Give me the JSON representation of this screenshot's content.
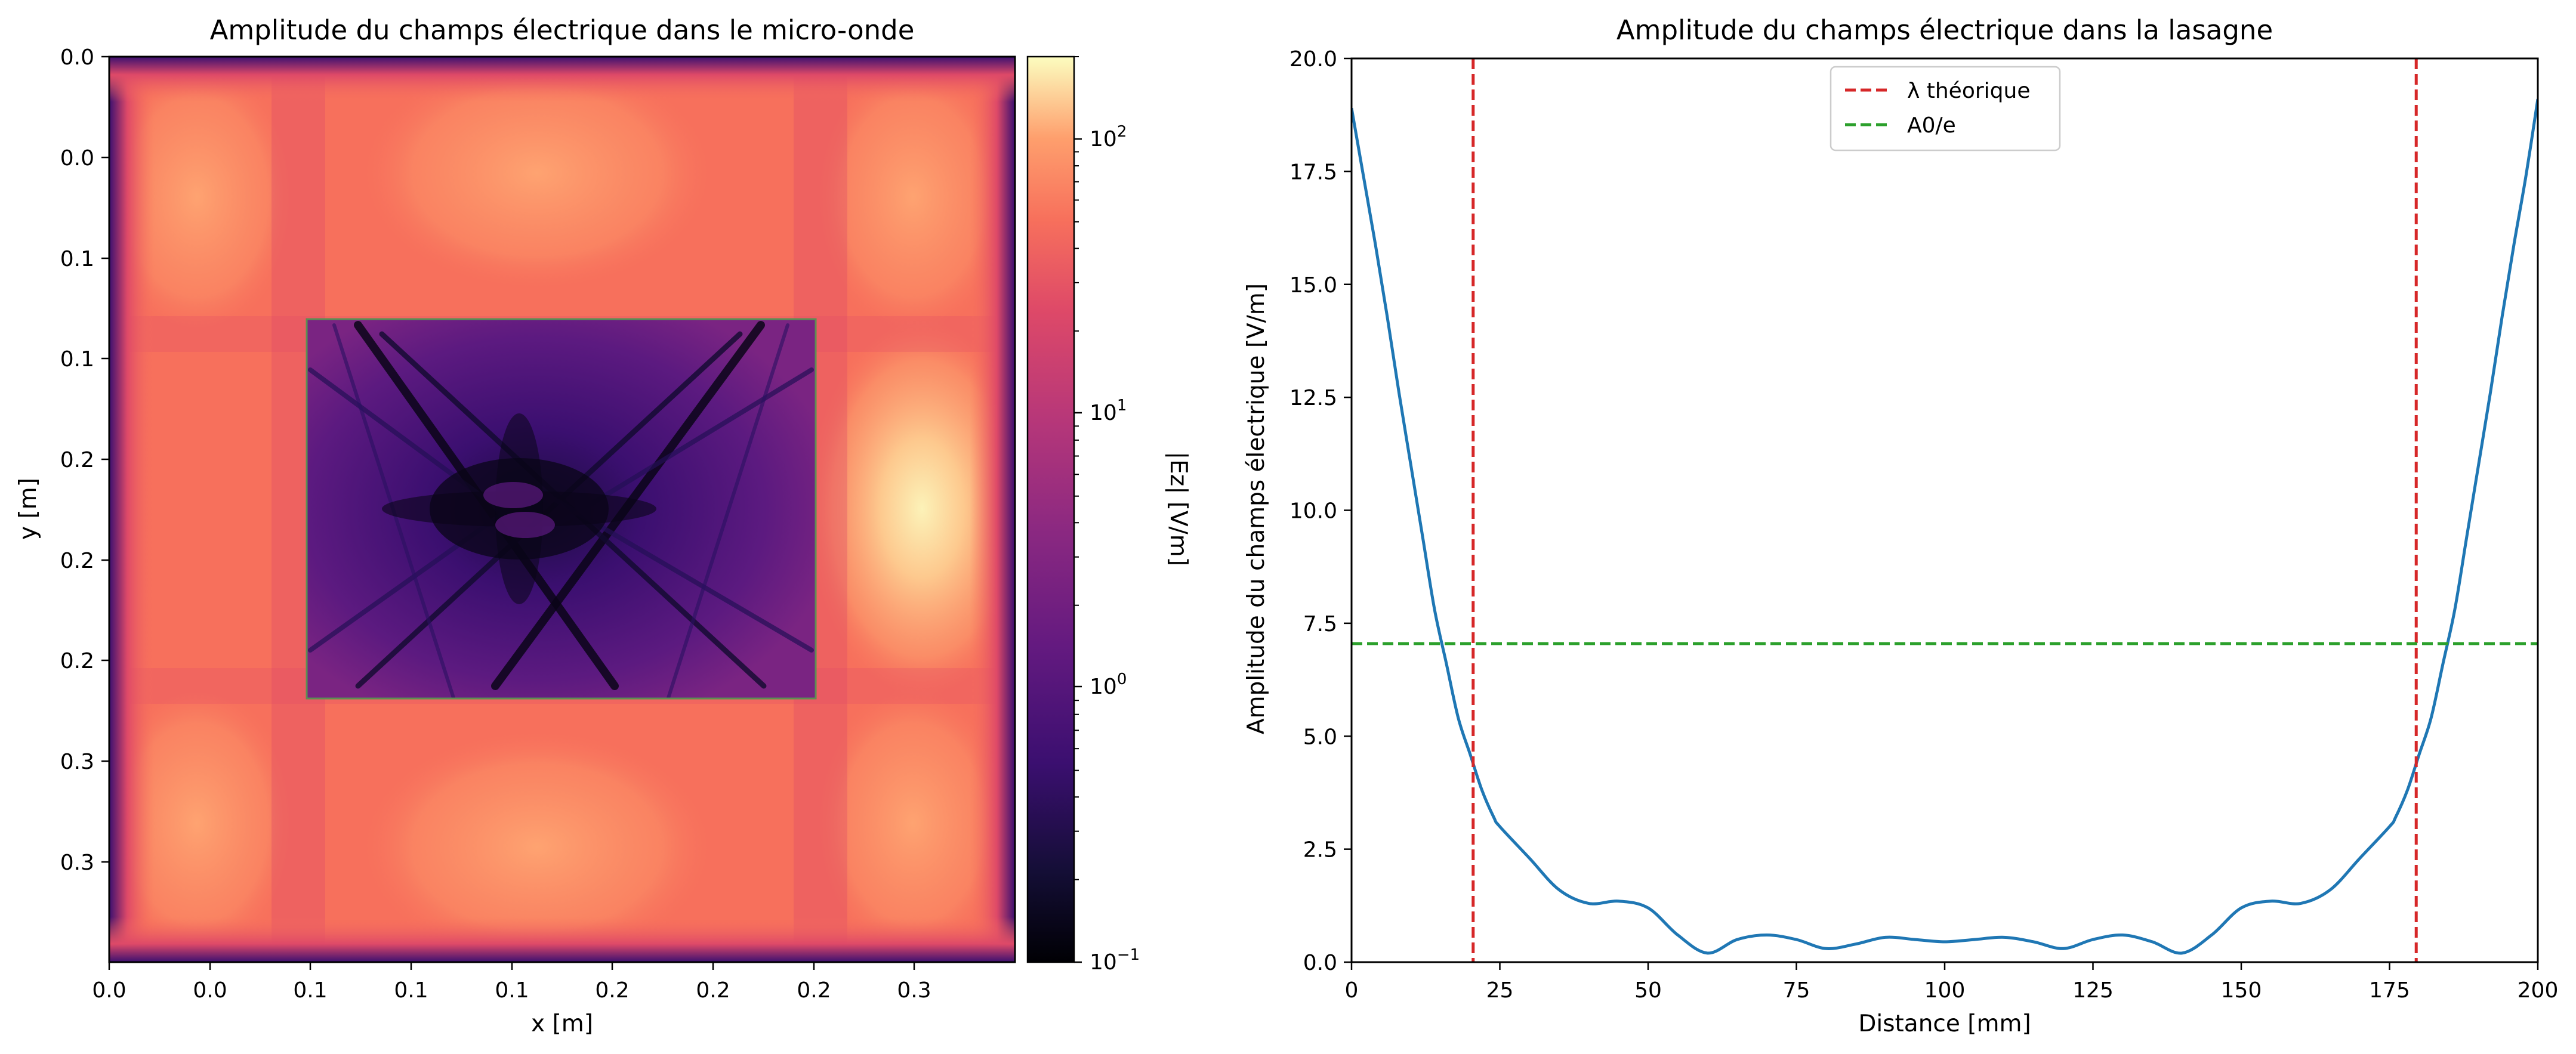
{
  "chart_data": [
    {
      "type": "heatmap",
      "title": "Amplitude du champs électrique dans le micro-onde",
      "xlabel": "x [m]",
      "ylabel": "y [m]",
      "x_tick_labels": [
        "0.0",
        "0.0",
        "0.1",
        "0.1",
        "0.1",
        "0.2",
        "0.2",
        "0.2",
        "0.3"
      ],
      "y_tick_labels": [
        "0.0",
        "0.0",
        "0.1",
        "0.1",
        "0.2",
        "0.2",
        "0.2",
        "0.3",
        "0.3"
      ],
      "colormap": "magma",
      "color_scale": "log",
      "colorbar": {
        "label": "|Ez| [V/m]",
        "range": [
          0.1,
          200
        ],
        "ticks": [
          {
            "base": "10",
            "exp": "−1",
            "value": 0.1
          },
          {
            "base": "10",
            "exp": "0",
            "value": 1
          },
          {
            "base": "10",
            "exp": "1",
            "value": 10
          },
          {
            "base": "10",
            "exp": "2",
            "value": 100
          }
        ]
      },
      "overlay": "rectangle outlining the lasagne region"
    },
    {
      "type": "line",
      "title": "Amplitude du champs électrique dans la lasagne",
      "xlabel": "Distance [mm]",
      "ylabel": "Amplitude du champs électrique [V/m]",
      "xlim": [
        0,
        200
      ],
      "ylim": [
        0,
        20
      ],
      "x_ticks": [
        0,
        25,
        50,
        75,
        100,
        125,
        150,
        175,
        200
      ],
      "x_tick_labels": [
        "0",
        "25",
        "50",
        "75",
        "100",
        "125",
        "150",
        "175",
        "200"
      ],
      "y_ticks": [
        0,
        2.5,
        5,
        7.5,
        10,
        12.5,
        15,
        17.5,
        20
      ],
      "y_tick_labels": [
        "0.0",
        "2.5",
        "5.0",
        "7.5",
        "10.0",
        "12.5",
        "15.0",
        "17.5",
        "20.0"
      ],
      "grid": false,
      "legend_position": "upper center",
      "series": [
        {
          "color": "#1f77b4",
          "x": [
            0,
            2,
            4,
            6,
            8,
            10,
            12,
            14,
            16,
            18,
            20,
            22,
            24,
            25,
            30,
            35,
            40,
            45,
            50,
            55,
            60,
            65,
            70,
            75,
            80,
            85,
            90,
            95,
            100,
            105,
            110,
            115,
            120,
            125,
            130,
            135,
            140,
            145,
            150,
            155,
            160,
            165,
            170,
            175,
            176,
            178,
            180,
            182,
            184,
            186,
            188,
            190,
            192,
            194,
            196,
            198,
            200
          ],
          "y": [
            18.9,
            17.4,
            15.9,
            14.3,
            12.6,
            11.0,
            9.4,
            7.8,
            6.6,
            5.4,
            4.6,
            3.8,
            3.2,
            3.0,
            2.3,
            1.6,
            1.3,
            1.35,
            1.2,
            0.6,
            0.2,
            0.5,
            0.6,
            0.5,
            0.3,
            0.4,
            0.55,
            0.5,
            0.45,
            0.5,
            0.55,
            0.45,
            0.3,
            0.5,
            0.6,
            0.45,
            0.2,
            0.6,
            1.2,
            1.35,
            1.3,
            1.6,
            2.3,
            3.0,
            3.2,
            3.8,
            4.6,
            5.4,
            6.6,
            7.8,
            9.4,
            11.0,
            12.6,
            14.3,
            15.9,
            17.4,
            19.1
          ]
        }
      ],
      "reference_lines": [
        {
          "orientation": "vertical",
          "value": 20.5,
          "color": "#d62728",
          "legend": "λ théorique"
        },
        {
          "orientation": "vertical",
          "value": 179.5,
          "color": "#d62728"
        },
        {
          "orientation": "horizontal",
          "value": 7.05,
          "color": "#2ca02c",
          "legend": "A0/e"
        }
      ]
    }
  ]
}
